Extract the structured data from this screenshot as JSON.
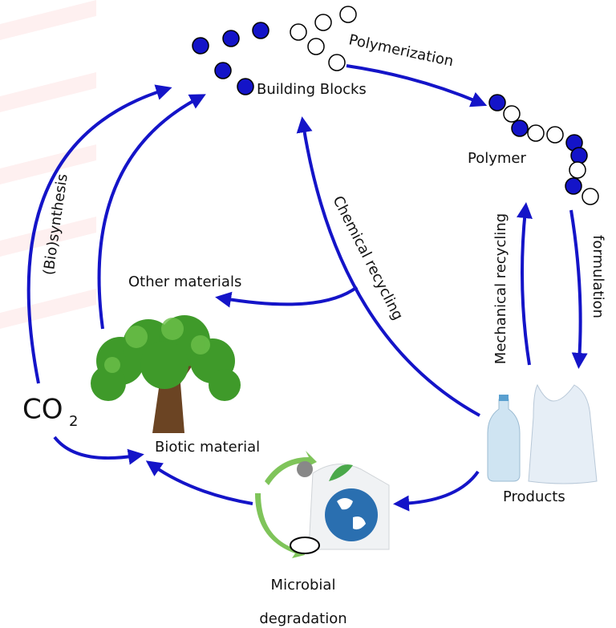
{
  "building_blocks": "Building Blocks",
  "polymerization": "Polymerization",
  "polymer": "Polymer",
  "formulation": "formulation",
  "mechanical_recycling": "Mechanical recycling",
  "chemical_recycling": "Chemical recycling",
  "other_materials": "Other materials",
  "biosynthesis": "(Bio)synthesis",
  "co2": {
    "main": "CO",
    "sub": "2"
  },
  "biotic_material": "Biotic material",
  "products": "Products",
  "microbial_degradation": [
    "Microbial",
    "degradation"
  ]
}
